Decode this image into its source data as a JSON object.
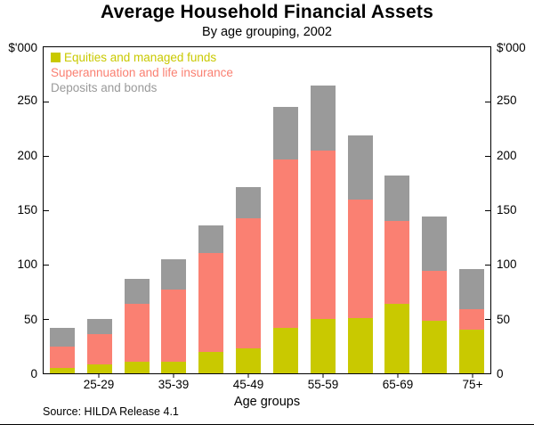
{
  "chart_data": {
    "type": "bar",
    "stacked": true,
    "title": "Average Household Financial Assets",
    "subtitle": "By age grouping, 2002",
    "ylabel": "$'000",
    "xlabel": "Age groups",
    "source": "Source: HILDA Release 4.1",
    "ylim": [
      0,
      300
    ],
    "yticks": [
      0,
      50,
      100,
      150,
      200,
      250
    ],
    "grid": false,
    "legend_position": "top-left-inside",
    "tick_labels": [
      "",
      "25-29",
      "",
      "35-39",
      "",
      "45-49",
      "",
      "55-59",
      "",
      "65-69",
      "",
      "75+"
    ],
    "series": [
      {
        "name": "Equities and managed funds",
        "color": "#c9c900",
        "swatch": true,
        "values": [
          5,
          8,
          11,
          11,
          20,
          23,
          42,
          50,
          51,
          64,
          48,
          40
        ]
      },
      {
        "name": "Superannuation and life insurance",
        "color": "#fa8072",
        "swatch": false,
        "values": [
          20,
          28,
          53,
          66,
          91,
          120,
          155,
          155,
          109,
          76,
          46,
          19
        ]
      },
      {
        "name": "Deposits and bonds",
        "color": "#9a9a9a",
        "swatch": false,
        "values": [
          17,
          14,
          23,
          28,
          25,
          28,
          48,
          60,
          59,
          42,
          50,
          37
        ]
      }
    ]
  }
}
